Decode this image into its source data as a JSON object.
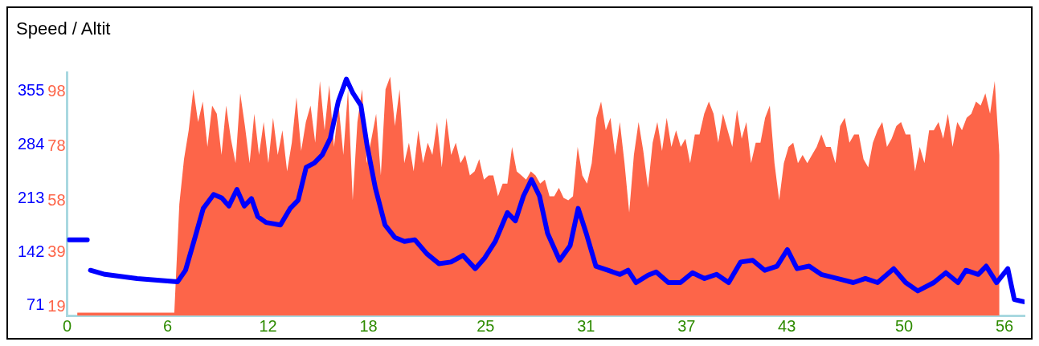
{
  "chart_data": {
    "type": "line",
    "title": "Speed / Altit",
    "xlim": [
      0,
      57.2
    ],
    "xticks": [
      0,
      6,
      12,
      18,
      25,
      31,
      37,
      43,
      50,
      56
    ],
    "ylim": [
      16,
      105
    ],
    "yticks": [
      19,
      39,
      58,
      78,
      98
    ],
    "y2lim": [
      58,
      380
    ],
    "y2ticks": [
      71,
      142,
      213,
      284,
      355
    ],
    "grid": false,
    "marker": "none",
    "series": [
      {
        "type": "area",
        "color": "#fd6549",
        "x": [
          0.6,
          6.4,
          6.7,
          6.98,
          7.26,
          7.54,
          7.82,
          8.1,
          8.38,
          8.66,
          8.94,
          9.22,
          9.5,
          9.78,
          10.06,
          10.34,
          10.62,
          10.9,
          11.18,
          11.46,
          11.74,
          12.02,
          12.3,
          12.58,
          12.86,
          13.14,
          13.42,
          13.7,
          13.98,
          14.26,
          14.54,
          14.82,
          15.1,
          15.38,
          15.66,
          15.94,
          16.22,
          16.5,
          16.78,
          17.06,
          17.34,
          17.62,
          17.9,
          18.18,
          18.46,
          18.74,
          19.02,
          19.3,
          19.58,
          19.86,
          20.14,
          20.42,
          20.7,
          20.98,
          21.26,
          21.54,
          21.82,
          22.1,
          22.38,
          22.66,
          22.94,
          23.22,
          23.5,
          23.78,
          24.06,
          24.34,
          24.62,
          24.9,
          25.18,
          25.46,
          25.74,
          26.02,
          26.3,
          26.58,
          26.86,
          27.14,
          27.42,
          27.7,
          27.98,
          28.26,
          28.54,
          28.82,
          29.1,
          29.38,
          29.66,
          29.94,
          30.22,
          30.5,
          30.78,
          31.06,
          31.34,
          31.62,
          31.9,
          32.18,
          32.46,
          32.74,
          33.02,
          33.3,
          33.58,
          33.86,
          34.14,
          34.42,
          34.7,
          34.98,
          35.26,
          35.54,
          35.82,
          36.1,
          36.38,
          36.66,
          36.94,
          37.22,
          37.5,
          37.78,
          38.06,
          38.34,
          38.62,
          38.9,
          39.18,
          39.46,
          39.74,
          40.02,
          40.3,
          40.58,
          40.86,
          41.14,
          41.42,
          41.7,
          41.98,
          42.26,
          42.54,
          42.82,
          43.1,
          43.38,
          43.66,
          43.94,
          44.22,
          44.5,
          44.78,
          45.06,
          45.34,
          45.62,
          45.9,
          46.18,
          46.46,
          46.74,
          47.02,
          47.3,
          47.58,
          47.86,
          48.14,
          48.42,
          48.7,
          48.98,
          49.26,
          49.54,
          49.82,
          50.1,
          50.38,
          50.66,
          50.94,
          51.22,
          51.5,
          51.78,
          52.06,
          52.34,
          52.62,
          52.9,
          53.18,
          53.46,
          53.74,
          54.02,
          54.3,
          54.58,
          54.86,
          55.14,
          55.42,
          55.7
        ],
        "values": [
          17,
          17,
          56.7,
          73.3,
          83.9,
          98.9,
          86.9,
          94.4,
          77.8,
          92.9,
          89.9,
          74.8,
          92.9,
          80.8,
          71.8,
          97.4,
          85.4,
          71.8,
          89.9,
          74.8,
          86.9,
          71.8,
          88.4,
          74.8,
          83.9,
          68.8,
          79.3,
          95.9,
          76.3,
          86.9,
          92.9,
          79.3,
          101.9,
          83.9,
          100.4,
          77.8,
          92.9,
          74.8,
          98.9,
          58.2,
          86.9,
          98.9,
          71.8,
          80.8,
          89.9,
          67.3,
          98.9,
          103.5,
          85.4,
          98.9,
          71.8,
          79.3,
          68.8,
          83.9,
          71.8,
          79.3,
          74.8,
          86.9,
          70.3,
          88.4,
          74.8,
          79.3,
          71.8,
          74.8,
          67.3,
          68.8,
          73.3,
          65.8,
          67.3,
          67.3,
          59.7,
          64.3,
          64.3,
          77.8,
          68.8,
          67.3,
          65.8,
          68.8,
          67.3,
          64.3,
          65.8,
          59.7,
          59.7,
          62.8,
          59.1,
          58.2,
          59.7,
          77.8,
          67.3,
          64.3,
          71.8,
          88.4,
          94.4,
          83.9,
          88.4,
          74.8,
          86.9,
          71.8,
          53.7,
          74.8,
          86.9,
          76.3,
          62.8,
          79.3,
          86.9,
          76.3,
          88.4,
          77.8,
          83.9,
          77.8,
          80.8,
          71.8,
          82.3,
          82.3,
          89.9,
          94.4,
          89.9,
          79.3,
          89.9,
          83.9,
          77.8,
          91.4,
          80.8,
          86.9,
          71.8,
          79.3,
          79.3,
          88.4,
          92.9,
          71.8,
          58.2,
          71.8,
          77.8,
          79.3,
          71.8,
          74.8,
          71.8,
          74.8,
          77.8,
          82.3,
          77.8,
          77.8,
          71.8,
          85.4,
          88.4,
          79.3,
          82.3,
          82.3,
          73.3,
          70.3,
          79.3,
          83.9,
          86.9,
          77.8,
          80.8,
          85.4,
          86.9,
          82.3,
          82.3,
          68.8,
          77.8,
          71.8,
          83.9,
          83.9,
          86.9,
          80.8,
          89.9,
          77.8,
          86.9,
          83.9,
          88.4,
          89.9,
          94.4,
          92.9,
          97.4,
          89.9,
          101.9,
          74.8
        ]
      },
      {
        "type": "line",
        "axis": "y2",
        "color": "#0000ff",
        "x": [
          0.1,
          1.2,
          1.25,
          1.39,
          2.26,
          4.18,
          6.59,
          7.07,
          7.64,
          8.13,
          8.75,
          9.23,
          9.66,
          10.14,
          10.58,
          11.01,
          11.39,
          11.88,
          12.74,
          13.32,
          13.8,
          14.28,
          14.76,
          15.24,
          15.72,
          16.2,
          16.68,
          17.07,
          17.55,
          17.93,
          18.41,
          18.99,
          19.57,
          20.15,
          20.77,
          21.49,
          22.21,
          22.93,
          23.65,
          24.38,
          24.95,
          25.58,
          26.3,
          26.78,
          27.26,
          27.74,
          28.22,
          28.7,
          29.42,
          30.05,
          30.53,
          31.01,
          31.59,
          32.31,
          33.03,
          33.51,
          33.99,
          34.71,
          35.19,
          35.92,
          36.64,
          37.36,
          38.08,
          38.8,
          39.52,
          40.24,
          40.96,
          41.68,
          42.41,
          43.03,
          43.61,
          44.33,
          45.05,
          46.01,
          46.97,
          47.69,
          48.42,
          49.38,
          50.1,
          50.82,
          51.78,
          52.5,
          53.22,
          53.7,
          54.43,
          54.91,
          55.53,
          56.2,
          56.59,
          57.17
        ],
        "values": [
          158.4,
          158.4,
          null,
          117.9,
          112.5,
          107,
          102.6,
          118,
          161.6,
          199.9,
          218.4,
          214,
          203.1,
          225,
          203.1,
          213,
          189,
          181.3,
          178,
          199.9,
          210.8,
          254.5,
          260,
          270.9,
          292.7,
          341.9,
          371.4,
          352.8,
          336.4,
          281.8,
          227.2,
          178,
          161.6,
          156.2,
          158.4,
          139.8,
          126.7,
          128.9,
          137.6,
          120.1,
          134.4,
          156.2,
          194.4,
          183.5,
          216.3,
          238.1,
          216.3,
          167.1,
          131.1,
          150.7,
          199.9,
          167.1,
          123.4,
          117.9,
          112.5,
          117.9,
          101.6,
          111.4,
          115.8,
          101.6,
          101.6,
          114.7,
          107,
          112.5,
          101.6,
          128.9,
          131.1,
          117.9,
          123.4,
          145.3,
          120.1,
          123.4,
          112.5,
          107,
          101.6,
          107,
          101.6,
          120.1,
          101.6,
          90.6,
          101.6,
          114.7,
          101.6,
          117.9,
          112.5,
          123.4,
          101.6,
          120.1,
          79.1,
          76.2
        ]
      }
    ]
  }
}
